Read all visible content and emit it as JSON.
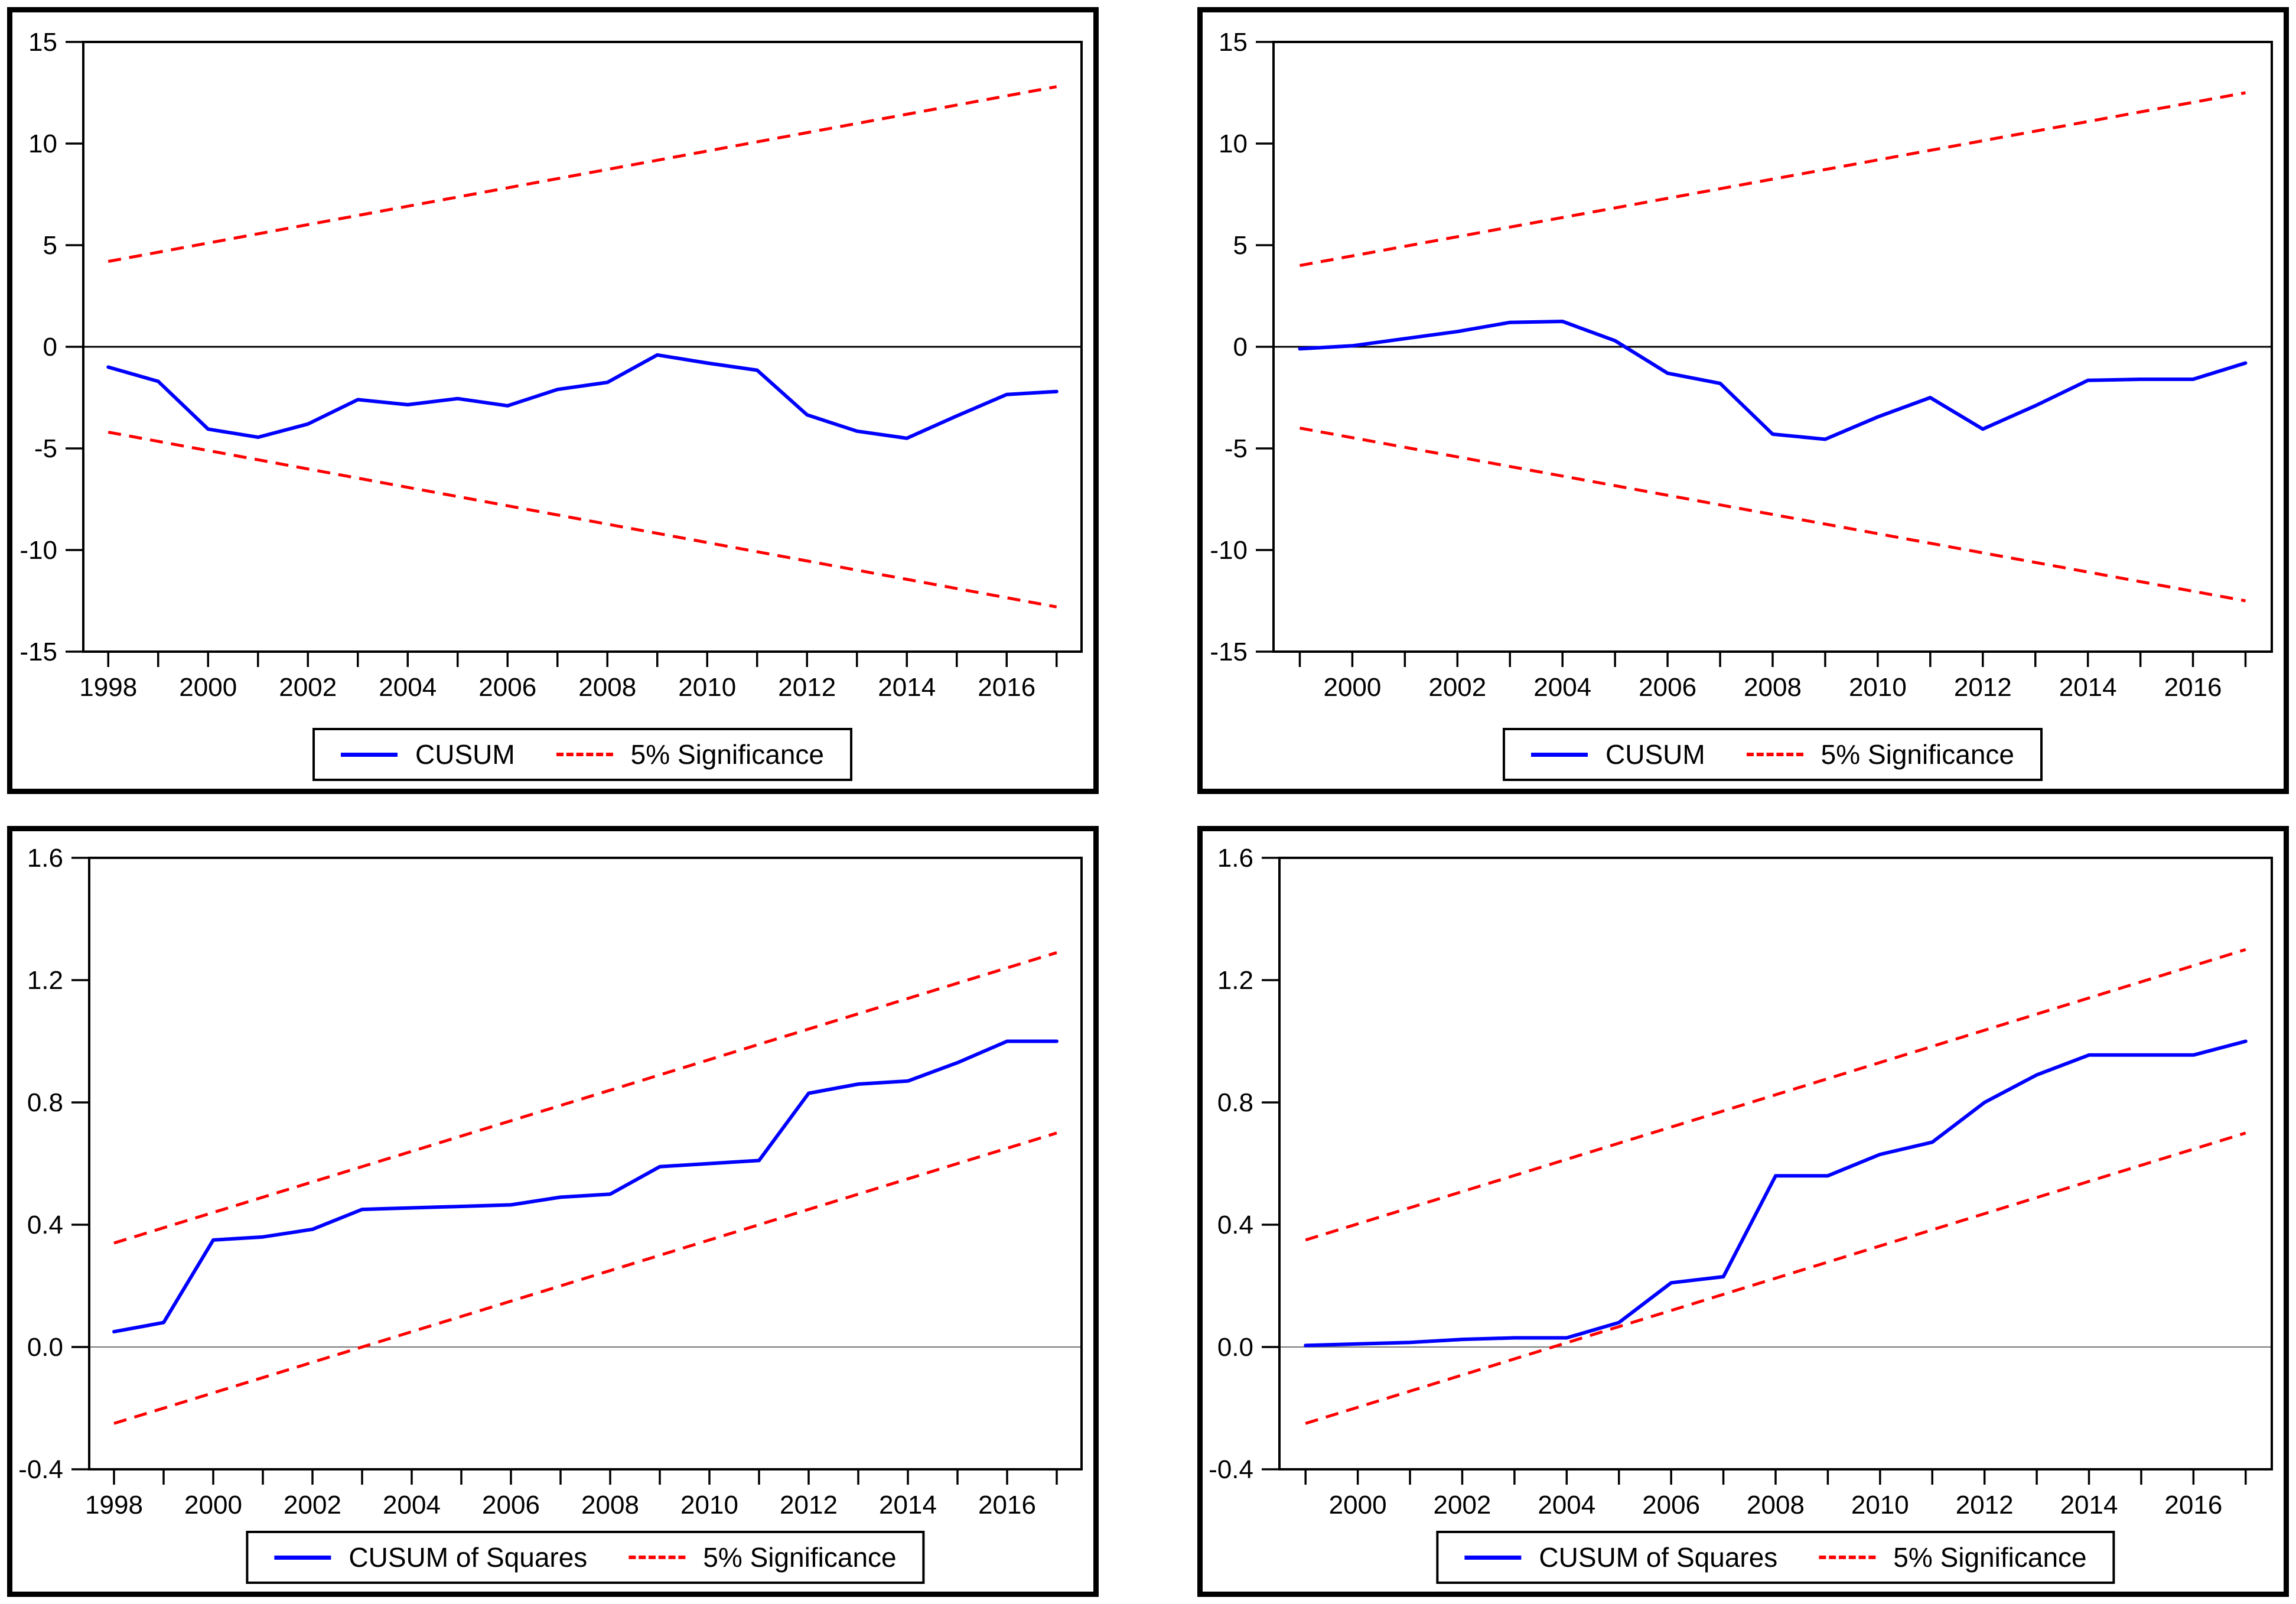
{
  "colors": {
    "series": "#0000ff",
    "significance": "#ff0000",
    "frame": "#000000",
    "zero_line_top": "#000000",
    "zero_line_bottom": "#777777",
    "background": "#ffffff"
  },
  "chart_data": [
    {
      "name": "cusum-top-left",
      "type": "line",
      "layout": "cusum",
      "ylim": [
        -15,
        15
      ],
      "x": [
        1998,
        1999,
        2000,
        2001,
        2002,
        2003,
        2004,
        2005,
        2006,
        2007,
        2008,
        2009,
        2010,
        2011,
        2012,
        2013,
        2014,
        2015,
        2016,
        2017
      ],
      "series": {
        "label": "CUSUM",
        "values": [
          -1.0,
          -1.7,
          -4.05,
          -4.45,
          -3.8,
          -2.6,
          -2.85,
          -2.55,
          -2.9,
          -2.1,
          -1.75,
          -0.4,
          -0.8,
          -1.15,
          -3.35,
          -4.15,
          -4.5,
          -3.4,
          -2.35,
          -2.2
        ]
      },
      "significance": {
        "label": "5% Significance",
        "upper": {
          "x": [
            1998,
            2017
          ],
          "y": [
            4.2,
            12.8
          ]
        },
        "lower": {
          "x": [
            1998,
            2017
          ],
          "y": [
            -4.2,
            -12.8
          ]
        }
      },
      "zero_line": 0,
      "grid": false,
      "yticks": [
        {
          "v": 15,
          "label": "15"
        },
        {
          "v": 10,
          "label": "10"
        },
        {
          "v": 5,
          "label": "5"
        },
        {
          "v": 0,
          "label": "0"
        },
        {
          "v": -5,
          "label": "-5"
        },
        {
          "v": -10,
          "label": "-10"
        },
        {
          "v": -15,
          "label": "-15"
        }
      ],
      "xticks": [
        {
          "v": 1998,
          "label": "1998"
        },
        {
          "v": 2000,
          "label": "2000"
        },
        {
          "v": 2002,
          "label": "2002"
        },
        {
          "v": 2004,
          "label": "2004"
        },
        {
          "v": 2006,
          "label": "2006"
        },
        {
          "v": 2008,
          "label": "2008"
        },
        {
          "v": 2010,
          "label": "2010"
        },
        {
          "v": 2012,
          "label": "2012"
        },
        {
          "v": 2014,
          "label": "2014"
        },
        {
          "v": 2016,
          "label": "2016"
        }
      ],
      "legend": [
        "CUSUM",
        "5% Significance"
      ],
      "legend_position": "bottom-center"
    },
    {
      "name": "cusum-top-right",
      "type": "line",
      "layout": "cusum",
      "ylim": [
        -15,
        15
      ],
      "x": [
        1999,
        2000,
        2001,
        2002,
        2003,
        2004,
        2005,
        2006,
        2007,
        2008,
        2009,
        2010,
        2011,
        2012,
        2013,
        2014,
        2015,
        2016,
        2017
      ],
      "series": {
        "label": "CUSUM",
        "values": [
          -0.1,
          0.05,
          0.4,
          0.75,
          1.2,
          1.25,
          0.3,
          -1.3,
          -1.8,
          -4.3,
          -4.55,
          -3.45,
          -2.5,
          -4.05,
          -2.9,
          -1.65,
          -1.6,
          -1.6,
          -0.8
        ]
      },
      "significance": {
        "label": "5% Significance",
        "upper": {
          "x": [
            1999,
            2017
          ],
          "y": [
            4.0,
            12.5
          ]
        },
        "lower": {
          "x": [
            1999,
            2017
          ],
          "y": [
            -4.0,
            -12.5
          ]
        }
      },
      "zero_line": 0,
      "grid": false,
      "yticks": [
        {
          "v": 15,
          "label": "15"
        },
        {
          "v": 10,
          "label": "10"
        },
        {
          "v": 5,
          "label": "5"
        },
        {
          "v": 0,
          "label": "0"
        },
        {
          "v": -5,
          "label": "-5"
        },
        {
          "v": -10,
          "label": "-10"
        },
        {
          "v": -15,
          "label": "-15"
        }
      ],
      "xticks": [
        {
          "v": 2000,
          "label": "2000"
        },
        {
          "v": 2002,
          "label": "2002"
        },
        {
          "v": 2004,
          "label": "2004"
        },
        {
          "v": 2006,
          "label": "2006"
        },
        {
          "v": 2008,
          "label": "2008"
        },
        {
          "v": 2010,
          "label": "2010"
        },
        {
          "v": 2012,
          "label": "2012"
        },
        {
          "v": 2014,
          "label": "2014"
        },
        {
          "v": 2016,
          "label": "2016"
        }
      ],
      "legend": [
        "CUSUM",
        "5% Significance"
      ],
      "legend_position": "bottom-center"
    },
    {
      "name": "cusum-of-squares-bottom-left",
      "type": "line",
      "layout": "cusumsq",
      "ylim": [
        -0.4,
        1.6
      ],
      "x": [
        1998,
        1999,
        2000,
        2001,
        2002,
        2003,
        2004,
        2005,
        2006,
        2007,
        2008,
        2009,
        2010,
        2011,
        2012,
        2013,
        2014,
        2015,
        2016,
        2017
      ],
      "series": {
        "label": "CUSUM of Squares",
        "values": [
          0.05,
          0.08,
          0.35,
          0.36,
          0.385,
          0.45,
          0.455,
          0.46,
          0.465,
          0.49,
          0.5,
          0.59,
          0.6,
          0.61,
          0.83,
          0.86,
          0.87,
          0.93,
          1.0,
          1.0
        ]
      },
      "significance": {
        "label": "5% Significance",
        "upper": {
          "x": [
            1998,
            2017
          ],
          "y": [
            0.34,
            1.29
          ]
        },
        "lower": {
          "x": [
            1998,
            2017
          ],
          "y": [
            -0.25,
            0.7
          ]
        }
      },
      "zero_line": 0,
      "grid": false,
      "yticks": [
        {
          "v": 1.6,
          "label": "1.6"
        },
        {
          "v": 1.2,
          "label": "1.2"
        },
        {
          "v": 0.8,
          "label": "0.8"
        },
        {
          "v": 0.4,
          "label": "0.4"
        },
        {
          "v": 0.0,
          "label": "0.0"
        },
        {
          "v": -0.4,
          "label": "-0.4"
        }
      ],
      "xticks": [
        {
          "v": 1998,
          "label": "1998"
        },
        {
          "v": 2000,
          "label": "2000"
        },
        {
          "v": 2002,
          "label": "2002"
        },
        {
          "v": 2004,
          "label": "2004"
        },
        {
          "v": 2006,
          "label": "2006"
        },
        {
          "v": 2008,
          "label": "2008"
        },
        {
          "v": 2010,
          "label": "2010"
        },
        {
          "v": 2012,
          "label": "2012"
        },
        {
          "v": 2014,
          "label": "2014"
        },
        {
          "v": 2016,
          "label": "2016"
        }
      ],
      "legend": [
        "CUSUM of Squares",
        "5% Significance"
      ],
      "legend_position": "bottom-center"
    },
    {
      "name": "cusum-of-squares-bottom-right",
      "type": "line",
      "layout": "cusumsq",
      "ylim": [
        -0.4,
        1.6
      ],
      "x": [
        1999,
        2000,
        2001,
        2002,
        2003,
        2004,
        2005,
        2006,
        2007,
        2008,
        2009,
        2010,
        2011,
        2012,
        2013,
        2014,
        2015,
        2016,
        2017
      ],
      "series": {
        "label": "CUSUM of Squares",
        "values": [
          0.005,
          0.01,
          0.015,
          0.025,
          0.03,
          0.03,
          0.08,
          0.21,
          0.23,
          0.56,
          0.56,
          0.63,
          0.67,
          0.8,
          0.89,
          0.955,
          0.955,
          0.955,
          1.0
        ]
      },
      "significance": {
        "label": "5% Significance",
        "upper": {
          "x": [
            1999,
            2017
          ],
          "y": [
            0.35,
            1.3
          ]
        },
        "lower": {
          "x": [
            1999,
            2017
          ],
          "y": [
            -0.25,
            0.7
          ]
        }
      },
      "zero_line": 0,
      "grid": false,
      "yticks": [
        {
          "v": 1.6,
          "label": "1.6"
        },
        {
          "v": 1.2,
          "label": "1.2"
        },
        {
          "v": 0.8,
          "label": "0.8"
        },
        {
          "v": 0.4,
          "label": "0.4"
        },
        {
          "v": 0.0,
          "label": "0.0"
        },
        {
          "v": -0.4,
          "label": "-0.4"
        }
      ],
      "xticks": [
        {
          "v": 2000,
          "label": "2000"
        },
        {
          "v": 2002,
          "label": "2002"
        },
        {
          "v": 2004,
          "label": "2004"
        },
        {
          "v": 2006,
          "label": "2006"
        },
        {
          "v": 2008,
          "label": "2008"
        },
        {
          "v": 2010,
          "label": "2010"
        },
        {
          "v": 2012,
          "label": "2012"
        },
        {
          "v": 2014,
          "label": "2014"
        },
        {
          "v": 2016,
          "label": "2016"
        }
      ],
      "legend": [
        "CUSUM of Squares",
        "5% Significance"
      ],
      "legend_position": "bottom-center"
    }
  ]
}
